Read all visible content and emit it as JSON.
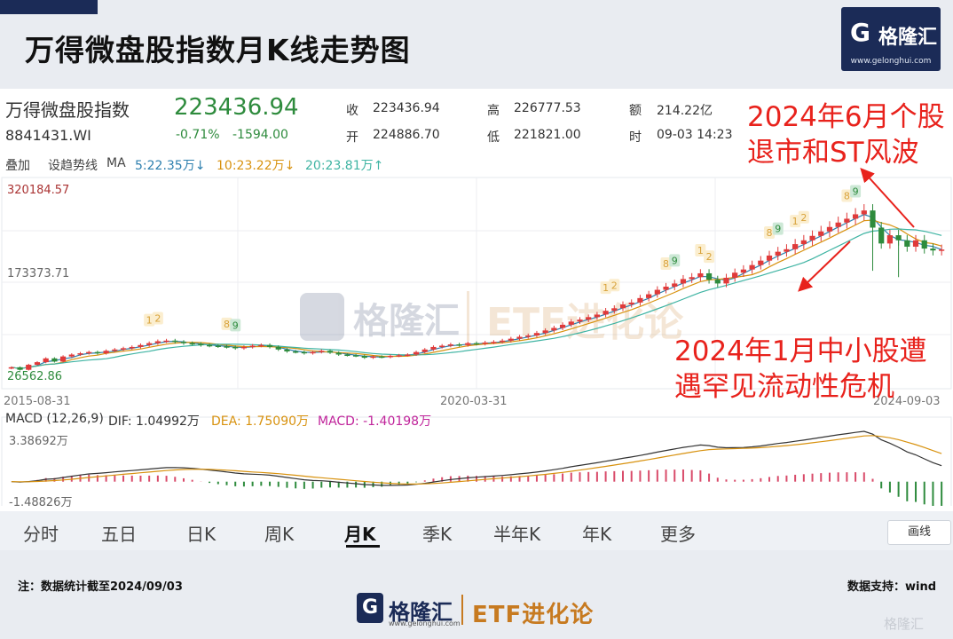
{
  "header": {
    "title": "万得微盘股指数月K线走势图",
    "logo_mark": "G",
    "logo_name": "格隆汇",
    "logo_url": "www.gelonghui.com"
  },
  "quote": {
    "name": "万得微盘股指数",
    "code": "8841431.WI",
    "price": "223436.94",
    "change_pct": "-0.71%",
    "change": "-1594.00",
    "close_label": "收",
    "close": "223436.94",
    "open_label": "开",
    "open": "224886.70",
    "high_label": "高",
    "high": "226777.53",
    "low_label": "低",
    "low": "221821.00",
    "amount_label": "额",
    "amount": "214.22亿",
    "time_label": "时",
    "time": "09-03 14:23"
  },
  "toolbar": {
    "overlay": "叠加",
    "draw_line": "设趋势线",
    "ma_label": "MA",
    "ma5": "5:22.35万↓",
    "ma10": "10:23.22万↓",
    "ma20": "20:23.81万↑"
  },
  "colors": {
    "up": "#e03a3a",
    "down": "#2e8b3d",
    "ma5": "#2d7fae",
    "ma10": "#d8920f",
    "ma20": "#3fb4a3",
    "annotation": "#e8221c",
    "macd_pos": "#d94b6a",
    "macd_neg": "#2e8b3d"
  },
  "annotations": {
    "top": [
      "2024年6月个股",
      "退市和ST风波"
    ],
    "bottom": [
      "2024年1月中小股遭",
      "遇罕见流动性危机"
    ]
  },
  "macd": {
    "label": "MACD (12,26,9)",
    "dif": "DIF: 1.04992万",
    "dea": "DEA: 1.75090万",
    "macd": "MACD: -1.40198万",
    "ymax_label": "3.38692万",
    "ymin_label": "-1.48826万"
  },
  "tabs": [
    "分时",
    "五日",
    "日K",
    "周K",
    "月K",
    "季K",
    "半年K",
    "年K",
    "更多"
  ],
  "active_tab": "月K",
  "line_button": "画线",
  "footer": {
    "note": "注：数据统计截至2024/09/03",
    "source": "数据支持：wind",
    "logo_mark": "G",
    "logo_name": "格隆汇",
    "logo_url": "www.gelonghui.com",
    "etf": "ETF进化论",
    "corner_wm": "格隆汇"
  },
  "chart_data": {
    "type": "candlestick",
    "title": "万得微盘股指数月K线走势图",
    "x_tick_labels": [
      "2015-08-31",
      "2020-03-31",
      "2024-09-03"
    ],
    "y_labels": [
      "320184.57",
      "173373.71",
      "26562.86"
    ],
    "ylim": [
      26562.86,
      320184.57
    ],
    "last_close": 223436.94,
    "candles_count": 109,
    "closes_approx": [
      38000,
      34000,
      42000,
      46000,
      52000,
      47000,
      55000,
      58000,
      60000,
      62000,
      60000,
      64000,
      66000,
      68000,
      70000,
      73000,
      76000,
      79000,
      80000,
      78000,
      76000,
      75000,
      73000,
      72000,
      71000,
      70000,
      68000,
      70000,
      72000,
      73000,
      70000,
      66000,
      63000,
      62000,
      60000,
      62000,
      64000,
      61000,
      58000,
      57000,
      56000,
      53000,
      55000,
      54000,
      56000,
      57000,
      58000,
      62000,
      66000,
      70000,
      72000,
      74000,
      73000,
      76000,
      75000,
      77000,
      78000,
      80000,
      83000,
      86000,
      88000,
      92000,
      96000,
      100000,
      105000,
      110000,
      113000,
      117000,
      121000,
      127000,
      131000,
      137000,
      140000,
      147000,
      153000,
      160000,
      165000,
      170000,
      177000,
      180000,
      186000,
      176000,
      170000,
      179000,
      187000,
      192000,
      199000,
      206000,
      214000,
      220000,
      224000,
      232000,
      238000,
      245000,
      252000,
      259000,
      266000,
      272000,
      279000,
      285000,
      258000,
      233000,
      246000,
      238000,
      228000,
      238000,
      225000,
      222000,
      223437
    ],
    "markers": [
      {
        "label": "1",
        "index": 16
      },
      {
        "label": "2",
        "index": 17
      },
      {
        "label": "8",
        "index": 25
      },
      {
        "label": "9",
        "index": 26
      },
      {
        "label": "1",
        "index": 69
      },
      {
        "label": "2",
        "index": 70
      },
      {
        "label": "8",
        "index": 76
      },
      {
        "label": "9",
        "index": 77
      },
      {
        "label": "1",
        "index": 80
      },
      {
        "label": "2",
        "index": 81
      },
      {
        "label": "8",
        "index": 88
      },
      {
        "label": "9",
        "index": 89
      },
      {
        "label": "1",
        "index": 91
      },
      {
        "label": "2",
        "index": 92
      },
      {
        "label": "8",
        "index": 97
      },
      {
        "label": "9",
        "index": 98
      }
    ]
  }
}
